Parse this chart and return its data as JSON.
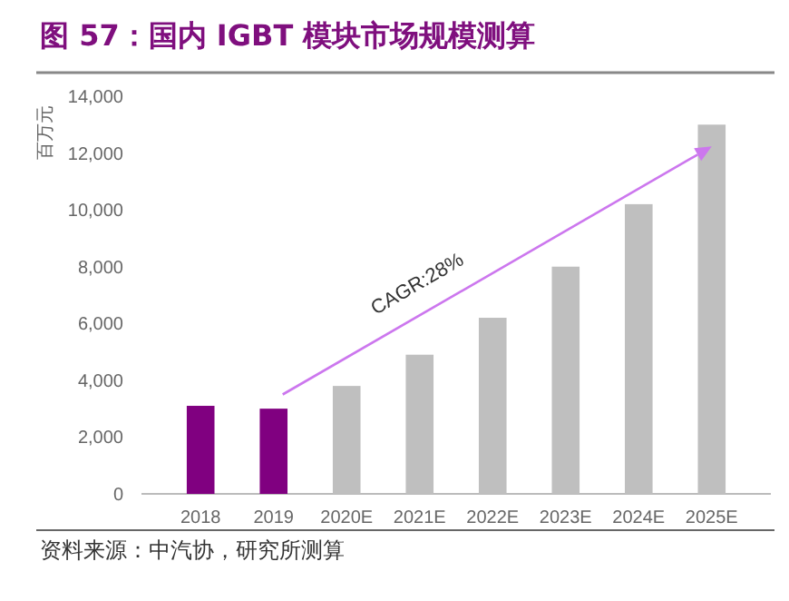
{
  "chart_data": {
    "type": "bar",
    "title": "图 57：国内 IGBT 模块市场规模测算",
    "ylabel": "百万元",
    "categories": [
      "2018",
      "2019",
      "2020E",
      "2021E",
      "2022E",
      "2023E",
      "2024E",
      "2025E"
    ],
    "values": [
      3100,
      3000,
      3800,
      4900,
      6200,
      8000,
      10200,
      13000
    ],
    "colors": [
      "#800080",
      "#800080",
      "#bfbfbf",
      "#bfbfbf",
      "#bfbfbf",
      "#bfbfbf",
      "#bfbfbf",
      "#bfbfbf"
    ],
    "ylim": [
      0,
      14000
    ],
    "yticks": [
      0,
      {
        "value": 2000,
        "label": "2,000"
      },
      {
        "value": 4000,
        "label": "4,000"
      },
      {
        "value": 6000,
        "label": "6,000"
      },
      {
        "value": 8000,
        "label": "8,000"
      },
      {
        "value": 10000,
        "label": "10,000"
      },
      {
        "value": 12000,
        "label": "12,000"
      },
      {
        "value": 14000,
        "label": "14,000"
      }
    ],
    "grid": false,
    "annotations": [
      "CAGR:28%",
      "资料来源：中汽协，研究所测算"
    ]
  }
}
